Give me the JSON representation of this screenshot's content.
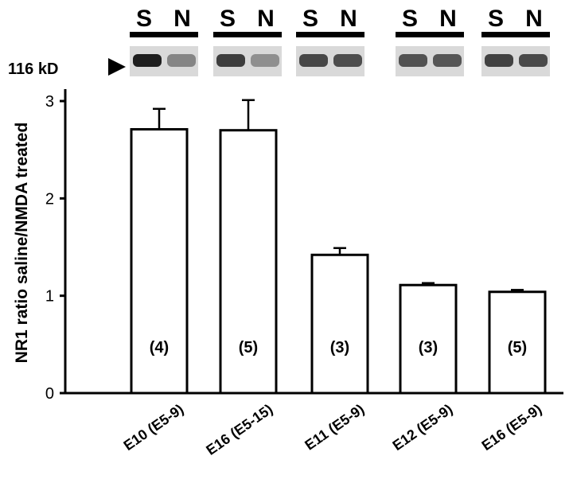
{
  "chart_data": {
    "type": "bar",
    "ylabel": "NR1 ratio saline/NMDA treated",
    "ylim": [
      0,
      3
    ],
    "yticks": [
      0,
      1,
      2,
      3
    ],
    "categories": [
      "E10 (E5-9)",
      "E16 (E5-15)",
      "E11 (E5-9)",
      "E12 (E5-9)",
      "E16 (E5-9)"
    ],
    "values": [
      2.71,
      2.7,
      1.42,
      1.11,
      1.04
    ],
    "errors": [
      0.21,
      0.31,
      0.07,
      0.02,
      0.02
    ],
    "n_labels": [
      "(4)",
      "(5)",
      "(3)",
      "(3)",
      "(5)"
    ],
    "bar_fill": "#ffffff",
    "bar_stroke": "#000000",
    "grid": false,
    "legend": "none"
  },
  "blot": {
    "marker_label": "116 kD",
    "lane_labels": [
      "S",
      "N"
    ],
    "band_intensity": [
      [
        0.95,
        0.45
      ],
      [
        0.8,
        0.4
      ],
      [
        0.75,
        0.72
      ],
      [
        0.7,
        0.68
      ],
      [
        0.78,
        0.74
      ]
    ]
  }
}
